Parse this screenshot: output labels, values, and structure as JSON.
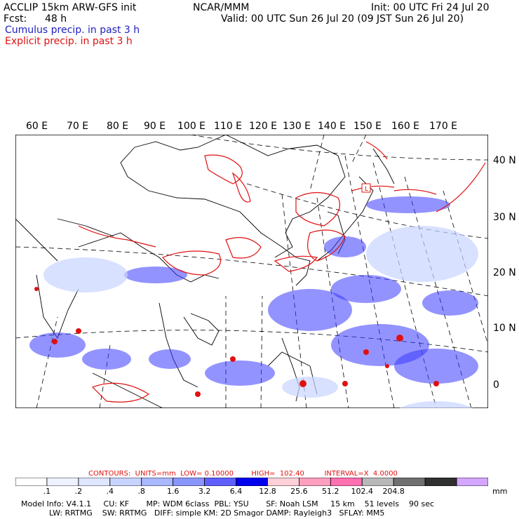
{
  "header": {
    "model_title": "ACCLIP 15km ARW-GFS init",
    "fcst_label": "Fcst:",
    "fcst_value": "48 h",
    "org": "NCAR/MMM",
    "init": "Init: 00 UTC Fri 24 Jul 20",
    "valid": "Valid: 00 UTC Sun 26 Jul 20 (09 JST Sun 26 Jul 20)"
  },
  "legend": {
    "cumulus": "Cumulus precip. in past 3 h",
    "explicit": "Explicit precip. in past 3 h"
  },
  "map": {
    "lon_labels": [
      "60 E",
      "70 E",
      "80 E",
      "90 E",
      "100 E",
      "110 E",
      "120 E",
      "130 E",
      "140 E",
      "150 E",
      "160 E",
      "170 E"
    ],
    "lat_labels": [
      "40 N",
      "30 N",
      "20 N",
      "10 N",
      "0"
    ],
    "marker": "L"
  },
  "contours": {
    "text": "CONTOURS:  UNITS=mm  LOW= 0.10000        HIGH=  102.40         INTERVAL=X  4.0000"
  },
  "colorbar": {
    "labels": [
      ".1",
      ".2",
      ".4",
      ".8",
      "1.6",
      "3.2",
      "6.4",
      "12.8",
      "25.6",
      "51.2",
      "102.4",
      "204.8"
    ],
    "units": "mm",
    "colors": [
      "#ffffff",
      "#eef2ff",
      "#dfe6ff",
      "#c8d4ff",
      "#a9b8ff",
      "#8a96ff",
      "#5f5fff",
      "#0000ee",
      "#ffd0d8",
      "#ff9fbf",
      "#ff70b0",
      "#b8b8b8",
      "#707070",
      "#303030",
      "#d4a6ff"
    ]
  },
  "model_info": {
    "line1": "Model Info: V4.1.1     CU: KF       MP: WDM 6class  PBL: YSU       SF: Noah LSM     15 km    51 levels    90 sec",
    "line2": "LW: RRTMG    SW: RRTMG   DIFF: simple KM: 2D Smagor DAMP: Rayleigh3   SFLAY: MM5"
  }
}
